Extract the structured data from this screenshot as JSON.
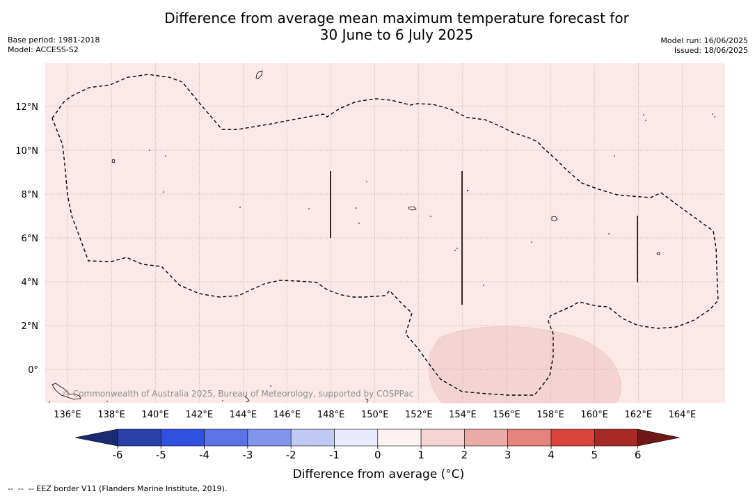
{
  "header": {
    "title_line1": "Difference from average mean maximum temperature forecast for",
    "title_line2": "30 June to 6 July 2025",
    "base_period": "Base period: 1981-2018",
    "model": "Model: ACCESS-S2",
    "model_run": "Model run: 16/06/2025",
    "issued": "Issued: 18/06/2025"
  },
  "map": {
    "background_anomaly_class": "0 to 1",
    "fill_colors": {
      "0 to 1": "#fbe9e8",
      "1 to 2": "#f3d4d3"
    },
    "longitude_ticks": [
      "136°E",
      "138°E",
      "140°E",
      "142°E",
      "144°E",
      "146°E",
      "148°E",
      "150°E",
      "152°E",
      "154°E",
      "156°E",
      "158°E",
      "160°E",
      "162°E",
      "164°E"
    ],
    "latitude_ticks": [
      "12°N",
      "10°N",
      "8°N",
      "6°N",
      "4°N",
      "2°N",
      "0°"
    ],
    "copyright": "© Commonwealth of Australia 2025, Bureau of Meteorology, supported by COSPPac"
  },
  "colorbar": {
    "label": "Difference from average (°C)",
    "ticks": [
      "-6",
      "-5",
      "-4",
      "-3",
      "-2",
      "-1",
      "0",
      "1",
      "2",
      "3",
      "4",
      "5",
      "6"
    ],
    "colors": [
      "#1b2a73",
      "#2b3fa8",
      "#3050e0",
      "#5a73e6",
      "#8294ec",
      "#c2c9f5",
      "#e9ebfc",
      "#fcf2f1",
      "#f4d5d4",
      "#ebaca7",
      "#e5847d",
      "#d9453c",
      "#a82a24",
      "#6e1818"
    ]
  },
  "footnote": "--  --  -- EEZ border V11 (Flanders Marine Institute, 2019)."
}
